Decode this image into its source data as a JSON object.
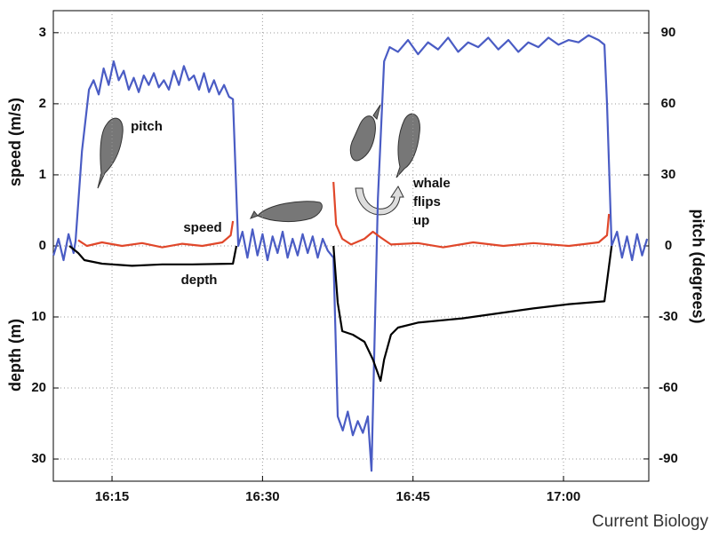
{
  "chart_data": {
    "type": "line",
    "ylabel": "speed (m/s)",
    "ylim": [
      -3.31,
      3.31
    ],
    "yticks": [
      0,
      1,
      2,
      3
    ],
    "depth_label": "depth (m)",
    "depth_lim": [
      33.12,
      -33.12
    ],
    "depth_ticks": [
      10,
      20,
      30
    ],
    "y2label": "pitch (degrees)",
    "y2lim": [
      -99.4,
      99.4
    ],
    "y2ticks": [
      -90,
      -60,
      -30,
      0,
      30,
      60,
      90
    ],
    "xlim": [
      "16:09:09",
      "17:08:30"
    ],
    "xticks": [
      "16:15",
      "16:30",
      "16:45",
      "17:00"
    ],
    "grid": true,
    "series": [
      {
        "name": "pitch",
        "color": "#4a5cc4",
        "axis": "y2",
        "x": [
          "16:09:10",
          "16:09:40",
          "16:10:10",
          "16:10:40",
          "16:11:10",
          "16:11:22",
          "16:12:00",
          "16:12:42",
          "16:13:10",
          "16:13:40",
          "16:14:10",
          "16:14:40",
          "16:15:10",
          "16:15:40",
          "16:16:10",
          "16:16:40",
          "16:17:10",
          "16:17:40",
          "16:18:10",
          "16:18:40",
          "16:19:10",
          "16:19:40",
          "16:20:10",
          "16:20:40",
          "16:21:10",
          "16:21:40",
          "16:22:10",
          "16:22:40",
          "16:23:10",
          "16:23:40",
          "16:24:10",
          "16:24:40",
          "16:25:10",
          "16:25:40",
          "16:26:10",
          "16:26:40",
          "16:27:03",
          "16:27:35",
          "16:28:00",
          "16:28:30",
          "16:29:00",
          "16:29:30",
          "16:30:00",
          "16:30:30",
          "16:31:00",
          "16:31:30",
          "16:32:00",
          "16:32:30",
          "16:33:00",
          "16:33:30",
          "16:34:00",
          "16:34:30",
          "16:35:00",
          "16:35:30",
          "16:36:00",
          "16:36:30",
          "16:37:04",
          "16:37:30",
          "16:38:00",
          "16:38:30",
          "16:39:00",
          "16:39:30",
          "16:40:00",
          "16:40:30",
          "16:40:52",
          "16:41:30",
          "16:42:07",
          "16:42:40",
          "16:43:30",
          "16:44:30",
          "16:45:30",
          "16:46:30",
          "16:47:30",
          "16:48:30",
          "16:49:30",
          "16:50:30",
          "16:51:30",
          "16:52:30",
          "16:53:30",
          "16:54:30",
          "16:55:30",
          "16:56:30",
          "16:57:30",
          "16:58:30",
          "16:59:30",
          "17:00:30",
          "17:01:30",
          "17:02:30",
          "17:03:30",
          "17:04:05",
          "17:04:20",
          "17:04:48",
          "17:05:20",
          "17:05:50",
          "17:06:20",
          "17:06:50",
          "17:07:20",
          "17:07:50",
          "17:08:20"
        ],
        "values": [
          -4,
          3,
          -6,
          5,
          -3,
          2,
          40,
          66,
          70,
          64,
          75,
          68,
          78,
          70,
          74,
          66,
          71,
          65,
          72,
          68,
          73,
          67,
          70,
          66,
          74,
          68,
          76,
          70,
          72,
          66,
          73,
          65,
          70,
          64,
          68,
          63,
          62,
          0,
          6,
          -5,
          7,
          -4,
          5,
          -6,
          4,
          -3,
          6,
          -5,
          3,
          -4,
          5,
          -3,
          4,
          -5,
          3,
          -2,
          -5,
          -72,
          -78,
          -70,
          -80,
          -74,
          -79,
          -72,
          -95,
          20,
          78,
          84,
          82,
          87,
          81,
          86,
          83,
          88,
          82,
          86,
          84,
          88,
          83,
          87,
          82,
          86,
          84,
          88,
          85,
          87,
          86,
          89,
          87,
          85,
          60,
          0,
          6,
          -5,
          4,
          -6,
          5,
          -4,
          3
        ]
      },
      {
        "name": "speed",
        "color": "#e0472a",
        "axis": "y",
        "x": [
          "16:11:38",
          "16:12:30",
          "16:14:00",
          "16:16:00",
          "16:18:00",
          "16:20:00",
          "16:22:00",
          "16:24:00",
          "16:26:00",
          "16:26:50",
          "16:27:03",
          "16:30:00",
          "16:37:04",
          "16:37:20",
          "16:37:57",
          "16:38:50",
          "16:40:10",
          "16:41:00",
          "16:41:46",
          "16:42:48",
          "16:45:29",
          "16:48:00",
          "16:51:00",
          "16:54:00",
          "16:57:00",
          "17:00:32",
          "17:03:30",
          "17:04:20",
          "17:04:32"
        ],
        "values": [
          0.08,
          0,
          0.05,
          0,
          0.04,
          -0.02,
          0.03,
          0,
          0.05,
          0.15,
          0.35,
          null,
          0.9,
          0.3,
          0.1,
          0.02,
          0.1,
          0.2,
          0.12,
          0.02,
          0.04,
          -0.02,
          0.05,
          0,
          0.04,
          0,
          0.05,
          0.15,
          0.45
        ]
      },
      {
        "name": "depth",
        "color": "#000000",
        "axis": "depth",
        "x": [
          "16:10:45",
          "16:11:38",
          "16:12:15",
          "16:14:00",
          "16:17:00",
          "16:20:00",
          "16:23:00",
          "16:27:03",
          "16:27:24",
          "16:30:00",
          "16:37:04",
          "16:37:30",
          "16:37:57",
          "16:39:00",
          "16:40:10",
          "16:41:00",
          "16:41:46",
          "16:42:07",
          "16:42:48",
          "16:43:30",
          "16:45:29",
          "16:49:55",
          "16:53:27",
          "16:57:00",
          "17:00:32",
          "17:04:05",
          "17:04:20",
          "17:04:48"
        ],
        "values": [
          0,
          1,
          2,
          2.5,
          2.8,
          2.6,
          2.6,
          2.5,
          0,
          null,
          0,
          8,
          12,
          12.5,
          13.5,
          16,
          19,
          16,
          12.5,
          11.5,
          10.8,
          10.2,
          9.5,
          8.8,
          8.2,
          7.8,
          5,
          0
        ]
      }
    ],
    "annotations": [
      "pitch",
      "speed",
      "depth",
      "whale flips up"
    ],
    "source": "Current Biology"
  }
}
